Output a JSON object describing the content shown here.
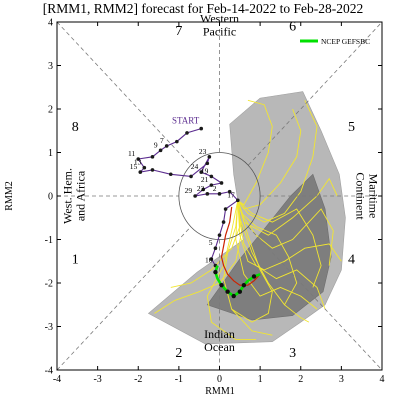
{
  "chart_data": {
    "type": "line",
    "title": "[RMM1, RMM2] forecast for Feb-14-2022 to Feb-28-2022",
    "xlabel": "RMM1",
    "ylabel": "RMM2",
    "xlim": [
      -4,
      4
    ],
    "ylim": [
      -4,
      4
    ],
    "x_ticks": [
      "-4",
      "-3",
      "-2",
      "-1",
      "0",
      "1",
      "2",
      "3",
      "4"
    ],
    "y_ticks": [
      "-4",
      "-3",
      "-2",
      "-1",
      "0",
      "1",
      "2",
      "3",
      "4"
    ],
    "phase_labels": [
      {
        "label": "1",
        "x": -3.55,
        "y": -1.55
      },
      {
        "label": "2",
        "x": -1.0,
        "y": -3.7
      },
      {
        "label": "3",
        "x": 1.8,
        "y": -3.7
      },
      {
        "label": "4",
        "x": 3.25,
        "y": -1.55
      },
      {
        "label": "5",
        "x": 3.25,
        "y": 1.5
      },
      {
        "label": "6",
        "x": 1.8,
        "y": 3.8
      },
      {
        "label": "7",
        "x": -1.0,
        "y": 3.7
      },
      {
        "label": "8",
        "x": -3.55,
        "y": 1.5
      }
    ],
    "regions": [
      {
        "lines": [
          "Western",
          "Pacific"
        ],
        "x": 0.0,
        "y": 3.85,
        "rotate": 0
      },
      {
        "lines": [
          "Indian",
          "Ocean"
        ],
        "x": 0.0,
        "y": -3.4,
        "rotate": 0
      },
      {
        "lines": [
          "West. Hem.",
          "and Africa"
        ],
        "x": -3.5,
        "y": 0.0,
        "rotate": -90
      },
      {
        "lines": [
          "Maritime",
          "Continent"
        ],
        "x": 3.55,
        "y": 0.0,
        "rotate": 90
      }
    ],
    "start_label": "START",
    "legend": {
      "label": "NCEP GEFSBC",
      "color": "#00e000",
      "position": "top-right"
    },
    "observed": {
      "color": "#5b2c8f",
      "points": [
        {
          "x": -0.45,
          "y": 1.55,
          "label": ""
        },
        {
          "x": -0.8,
          "y": 1.45,
          "label": ""
        },
        {
          "x": -1.05,
          "y": 1.25,
          "label": ""
        },
        {
          "x": -1.3,
          "y": 1.15,
          "label": "7"
        },
        {
          "x": -1.45,
          "y": 1.05,
          "label": "9"
        },
        {
          "x": -1.65,
          "y": 0.9,
          "label": ""
        },
        {
          "x": -2.0,
          "y": 0.85,
          "label": "11"
        },
        {
          "x": -1.85,
          "y": 0.65,
          "label": "13"
        },
        {
          "x": -1.95,
          "y": 0.55,
          "label": "15"
        },
        {
          "x": -1.65,
          "y": 0.6,
          "label": ""
        },
        {
          "x": -1.2,
          "y": 0.5,
          "label": ""
        },
        {
          "x": -0.7,
          "y": 0.45,
          "label": ""
        },
        {
          "x": -0.3,
          "y": 0.75,
          "label": ""
        },
        {
          "x": -0.25,
          "y": 0.9,
          "label": "23"
        },
        {
          "x": -0.45,
          "y": 0.55,
          "label": "24"
        },
        {
          "x": -0.2,
          "y": 0.45,
          "label": "19"
        },
        {
          "x": 0.05,
          "y": 0.3,
          "label": ""
        },
        {
          "x": -0.2,
          "y": 0.25,
          "label": "21"
        },
        {
          "x": -0.4,
          "y": 0.15,
          "label": ""
        },
        {
          "x": -0.6,
          "y": 0.0,
          "label": "29"
        },
        {
          "x": -0.3,
          "y": 0.05,
          "label": "22"
        },
        {
          "x": 0.0,
          "y": 0.05,
          "label": "2"
        },
        {
          "x": 0.25,
          "y": 0.1,
          "label": ""
        },
        {
          "x": 0.45,
          "y": -0.1,
          "label": "17"
        },
        {
          "x": 0.15,
          "y": -0.3,
          "label": ""
        },
        {
          "x": 0.1,
          "y": -0.6,
          "label": ""
        },
        {
          "x": 0.0,
          "y": -0.9,
          "label": ""
        },
        {
          "x": -0.1,
          "y": -1.2,
          "label": "5"
        },
        {
          "x": -0.2,
          "y": -1.45,
          "label": ""
        },
        {
          "x": -0.1,
          "y": -1.6,
          "label": "10"
        }
      ]
    },
    "ensemble_mean": [
      [
        0.3,
        -0.25
      ],
      [
        0.25,
        -0.6
      ],
      [
        0.15,
        -0.9
      ],
      [
        0.1,
        -1.15
      ],
      [
        0.05,
        -1.4
      ],
      [
        0.1,
        -1.6
      ],
      [
        0.2,
        -1.8
      ],
      [
        0.35,
        -1.95
      ],
      [
        0.5,
        -2.05
      ],
      [
        0.7,
        -2.05
      ],
      [
        0.85,
        -1.95
      ],
      [
        1.0,
        -1.8
      ]
    ],
    "ensemble_mean_color": "#cc2200",
    "green_line": [
      [
        -0.05,
        -1.6
      ],
      [
        -0.1,
        -1.75
      ],
      [
        -0.05,
        -1.9
      ],
      [
        0.05,
        -2.05
      ],
      [
        0.2,
        -2.2
      ],
      [
        0.35,
        -2.3
      ],
      [
        0.5,
        -2.2
      ],
      [
        0.6,
        -2.05
      ],
      [
        0.7,
        -1.95
      ],
      [
        0.85,
        -1.85
      ],
      [
        1.0,
        -1.8
      ]
    ],
    "green_points": [
      [
        -0.1,
        -1.75
      ],
      [
        0.05,
        -2.05
      ],
      [
        0.2,
        -2.2
      ],
      [
        0.35,
        -2.3
      ],
      [
        0.5,
        -2.2
      ],
      [
        0.6,
        -2.05
      ],
      [
        0.85,
        -1.85
      ]
    ],
    "light_shading": [
      [
        -1.75,
        -2.7
      ],
      [
        -0.35,
        -3.4
      ],
      [
        1.3,
        -3.35
      ],
      [
        2.0,
        -2.9
      ],
      [
        2.6,
        -2.5
      ],
      [
        3.0,
        -1.7
      ],
      [
        3.1,
        -0.5
      ],
      [
        2.95,
        0.5
      ],
      [
        2.5,
        1.5
      ],
      [
        2.05,
        2.4
      ],
      [
        1.0,
        2.25
      ],
      [
        0.25,
        1.65
      ],
      [
        0.35,
        0.5
      ],
      [
        0.6,
        -1.0
      ],
      [
        -0.55,
        -1.75
      ]
    ],
    "dark_shading": [
      [
        -0.3,
        -2.5
      ],
      [
        0.8,
        -2.85
      ],
      [
        1.8,
        -2.75
      ],
      [
        2.55,
        -2.2
      ],
      [
        2.75,
        -1.4
      ],
      [
        2.6,
        -0.3
      ],
      [
        2.3,
        0.5
      ],
      [
        1.75,
        0.0
      ],
      [
        1.15,
        -0.7
      ],
      [
        0.5,
        -1.45
      ]
    ],
    "member_color": "#f2e630",
    "members": [
      [
        [
          0.45,
          -0.1
        ],
        [
          0.6,
          -0.5
        ],
        [
          0.9,
          -0.9
        ],
        [
          1.3,
          -1.2
        ],
        [
          1.8,
          -1.0
        ],
        [
          2.2,
          -0.6
        ],
        [
          2.5,
          -0.3
        ],
        [
          2.8,
          -0.8
        ],
        [
          2.7,
          -1.6
        ]
      ],
      [
        [
          0.45,
          -0.1
        ],
        [
          0.7,
          -0.4
        ],
        [
          1.1,
          -0.6
        ],
        [
          1.6,
          -0.4
        ],
        [
          2.0,
          0.1
        ],
        [
          2.3,
          0.9
        ],
        [
          2.4,
          1.6
        ],
        [
          2.1,
          2.2
        ]
      ],
      [
        [
          0.45,
          -0.1
        ],
        [
          0.5,
          -0.6
        ],
        [
          0.6,
          -1.1
        ],
        [
          0.9,
          -1.6
        ],
        [
          1.4,
          -1.9
        ],
        [
          1.9,
          -1.7
        ],
        [
          2.4,
          -2.1
        ],
        [
          2.6,
          -2.6
        ]
      ],
      [
        [
          0.45,
          -0.1
        ],
        [
          0.4,
          -0.7
        ],
        [
          0.2,
          -1.3
        ],
        [
          0.1,
          -1.9
        ],
        [
          0.3,
          -2.6
        ],
        [
          0.8,
          -3.1
        ],
        [
          1.3,
          -3.2
        ]
      ],
      [
        [
          0.45,
          -0.1
        ],
        [
          0.6,
          -0.2
        ],
        [
          0.9,
          0.3
        ],
        [
          1.2,
          1.0
        ],
        [
          1.3,
          1.6
        ],
        [
          1.1,
          2.1
        ],
        [
          0.7,
          2.2
        ]
      ],
      [
        [
          0.45,
          -0.1
        ],
        [
          0.55,
          -0.8
        ],
        [
          0.4,
          -1.5
        ],
        [
          0.0,
          -2.0
        ],
        [
          -0.5,
          -2.2
        ],
        [
          -1.1,
          -2.4
        ],
        [
          -1.6,
          -2.7
        ]
      ],
      [
        [
          0.45,
          -0.1
        ],
        [
          0.5,
          -0.5
        ],
        [
          0.8,
          -1.3
        ],
        [
          1.2,
          -2.0
        ],
        [
          1.6,
          -2.5
        ],
        [
          2.0,
          -2.8
        ],
        [
          2.2,
          -2.9
        ]
      ],
      [
        [
          0.45,
          -0.1
        ],
        [
          0.6,
          -0.3
        ],
        [
          1.0,
          -0.2
        ],
        [
          1.5,
          0.3
        ],
        [
          1.9,
          0.9
        ],
        [
          2.0,
          1.5
        ],
        [
          1.8,
          2.0
        ]
      ],
      [
        [
          0.45,
          -0.1
        ],
        [
          0.5,
          -0.9
        ],
        [
          0.7,
          -1.5
        ],
        [
          1.1,
          -1.7
        ],
        [
          1.6,
          -1.5
        ],
        [
          2.1,
          -1.2
        ],
        [
          2.7,
          -1.1
        ],
        [
          3.0,
          -1.5
        ]
      ],
      [
        [
          0.45,
          -0.1
        ],
        [
          0.3,
          -0.8
        ],
        [
          0.1,
          -1.6
        ],
        [
          -0.3,
          -2.3
        ],
        [
          -0.2,
          -2.9
        ],
        [
          0.4,
          -3.3
        ],
        [
          0.9,
          -3.3
        ]
      ],
      [
        [
          0.45,
          -0.1
        ],
        [
          0.7,
          -0.9
        ],
        [
          1.0,
          -1.7
        ],
        [
          1.3,
          -2.2
        ],
        [
          1.2,
          -2.7
        ],
        [
          0.8,
          -2.9
        ],
        [
          0.3,
          -2.6
        ]
      ],
      [
        [
          0.45,
          -0.1
        ],
        [
          0.6,
          -0.6
        ],
        [
          1.2,
          -0.9
        ],
        [
          1.8,
          -0.5
        ],
        [
          2.4,
          0.0
        ],
        [
          2.7,
          0.4
        ],
        [
          2.9,
          0.0
        ]
      ],
      [
        [
          0.45,
          -0.1
        ],
        [
          0.4,
          -1.0
        ],
        [
          0.6,
          -1.8
        ],
        [
          1.0,
          -2.3
        ],
        [
          1.5,
          -2.1
        ],
        [
          2.0,
          -2.3
        ],
        [
          2.4,
          -2.6
        ]
      ],
      [
        [
          0.45,
          -0.1
        ],
        [
          0.55,
          -0.4
        ],
        [
          0.9,
          -0.7
        ],
        [
          1.4,
          -0.9
        ],
        [
          1.7,
          -1.4
        ],
        [
          1.9,
          -2.0
        ],
        [
          1.6,
          -2.5
        ]
      ],
      [
        [
          0.45,
          -0.1
        ],
        [
          0.5,
          -0.7
        ],
        [
          0.3,
          -1.2
        ],
        [
          -0.2,
          -1.7
        ],
        [
          -0.7,
          -2.0
        ],
        [
          -1.2,
          -2.1
        ]
      ],
      [
        [
          0.45,
          -0.1
        ],
        [
          0.8,
          -0.4
        ],
        [
          1.3,
          -0.6
        ],
        [
          1.9,
          -0.3
        ],
        [
          2.3,
          -0.9
        ],
        [
          2.5,
          -1.6
        ],
        [
          2.3,
          -2.1
        ]
      ]
    ]
  }
}
